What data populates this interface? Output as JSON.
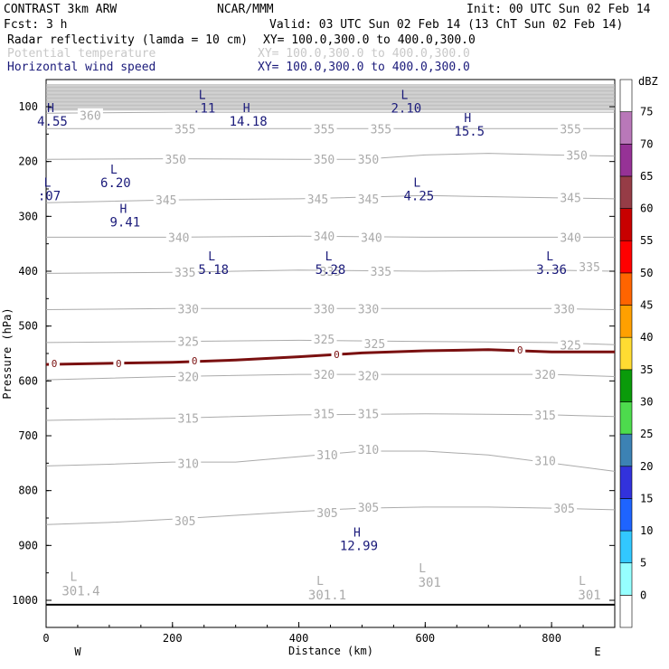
{
  "header": {
    "model": "CONTRAST  3km ARW",
    "center": "NCAR/MMM",
    "init": "Init: 00 UTC Sun 02 Feb 14",
    "fcst": "Fcst:    3 h",
    "valid": "Valid: 03 UTC Sun 02 Feb 14 (13 ChT Sun 02 Feb 14)",
    "field1_name": "Radar reflectivity (lamda = 10 cm)",
    "field1_xy": "XY= 100.0,300.0 to 400.0,300.0",
    "field2_name": "Potential temperature",
    "field2_xy": "XY= 100.0,300.0 to 400.0,300.0",
    "field3_name": "Horizontal wind speed",
    "field3_xy": "XY= 100.0,300.0 to 400.0,300.0"
  },
  "colors": {
    "field1": "#000000",
    "field2": "#c8c8c8",
    "field3": "#1a1a7a",
    "theta": "#aaaaaa",
    "freezing": "#7a1010",
    "wind_labels": "#1a1a7a"
  },
  "chart_data": {
    "type": "cross-section",
    "xlabel": "Distance (km)",
    "ylabel": "Pressure (hPa)",
    "x_ticks": [
      0,
      200,
      400,
      600,
      800
    ],
    "y_ticks": [
      100,
      200,
      300,
      400,
      500,
      600,
      700,
      800,
      900,
      1000
    ],
    "xlim": [
      0,
      900
    ],
    "ylim_hpa": [
      1050,
      55
    ],
    "west_label": "W",
    "east_label": "E",
    "colorbar": {
      "unit": "dBZ",
      "levels": [
        0,
        5,
        10,
        15,
        20,
        25,
        30,
        35,
        40,
        45,
        50,
        55,
        60,
        65,
        70,
        75
      ],
      "colors": [
        "#ffffff",
        "#96ffff",
        "#32c8ff",
        "#1e64ff",
        "#3232dc",
        "#3c82b4",
        "#4ddb4d",
        "#0a9b0a",
        "#ffdc32",
        "#ffa000",
        "#ff6400",
        "#ff0000",
        "#c80000",
        "#963c46",
        "#963296",
        "#b978b9",
        "#ffffff"
      ]
    },
    "theta_contours": [
      {
        "value": 305,
        "points": [
          [
            0,
            862
          ],
          [
            100,
            858
          ],
          [
            200,
            852
          ],
          [
            300,
            845
          ],
          [
            400,
            838
          ],
          [
            500,
            832
          ],
          [
            600,
            830
          ],
          [
            700,
            830
          ],
          [
            800,
            832
          ],
          [
            900,
            835
          ]
        ],
        "labels": [
          [
            220,
            855
          ],
          [
            445,
            840
          ],
          [
            510,
            830
          ],
          [
            820,
            832
          ]
        ]
      },
      {
        "value": 310,
        "points": [
          [
            0,
            755
          ],
          [
            100,
            752
          ],
          [
            200,
            748
          ],
          [
            300,
            748
          ],
          [
            400,
            738
          ],
          [
            500,
            728
          ],
          [
            600,
            728
          ],
          [
            700,
            735
          ],
          [
            800,
            750
          ],
          [
            900,
            765
          ]
        ],
        "labels": [
          [
            225,
            750
          ],
          [
            445,
            735
          ],
          [
            510,
            725
          ],
          [
            790,
            745
          ]
        ]
      },
      {
        "value": 315,
        "points": [
          [
            0,
            672
          ],
          [
            200,
            668
          ],
          [
            400,
            662
          ],
          [
            600,
            660
          ],
          [
            800,
            662
          ],
          [
            900,
            665
          ]
        ],
        "labels": [
          [
            225,
            668
          ],
          [
            440,
            660
          ],
          [
            510,
            660
          ],
          [
            790,
            662
          ]
        ]
      },
      {
        "value": 320,
        "points": [
          [
            0,
            598
          ],
          [
            200,
            592
          ],
          [
            400,
            588
          ],
          [
            600,
            588
          ],
          [
            800,
            588
          ],
          [
            900,
            592
          ]
        ],
        "labels": [
          [
            225,
            592
          ],
          [
            440,
            588
          ],
          [
            510,
            590
          ],
          [
            790,
            588
          ]
        ]
      },
      {
        "value": 325,
        "points": [
          [
            0,
            530
          ],
          [
            200,
            528
          ],
          [
            400,
            526
          ],
          [
            600,
            528
          ],
          [
            800,
            530
          ],
          [
            900,
            534
          ]
        ],
        "labels": [
          [
            225,
            528
          ],
          [
            440,
            524
          ],
          [
            520,
            532
          ],
          [
            830,
            534
          ]
        ]
      },
      {
        "value": 330,
        "points": [
          [
            0,
            470
          ],
          [
            200,
            468
          ],
          [
            400,
            468
          ],
          [
            600,
            468
          ],
          [
            800,
            468
          ],
          [
            900,
            470
          ]
        ],
        "labels": [
          [
            225,
            468
          ],
          [
            440,
            468
          ],
          [
            510,
            468
          ],
          [
            820,
            468
          ]
        ]
      },
      {
        "value": 335,
        "points": [
          [
            0,
            404
          ],
          [
            200,
            402
          ],
          [
            400,
            398
          ],
          [
            600,
            400
          ],
          [
            800,
            398
          ],
          [
            900,
            400
          ]
        ],
        "labels": [
          [
            220,
            402
          ],
          [
            450,
            400
          ],
          [
            530,
            400
          ],
          [
            860,
            392
          ]
        ]
      },
      {
        "value": 340,
        "points": [
          [
            0,
            338
          ],
          [
            200,
            338
          ],
          [
            400,
            336
          ],
          [
            600,
            338
          ],
          [
            800,
            338
          ],
          [
            900,
            338
          ]
        ],
        "labels": [
          [
            210,
            338
          ],
          [
            440,
            336
          ],
          [
            515,
            338
          ],
          [
            830,
            338
          ]
        ]
      },
      {
        "value": 345,
        "points": [
          [
            0,
            275
          ],
          [
            200,
            270
          ],
          [
            400,
            268
          ],
          [
            600,
            262
          ],
          [
            800,
            266
          ],
          [
            900,
            268
          ]
        ],
        "labels": [
          [
            190,
            270
          ],
          [
            430,
            268
          ],
          [
            510,
            268
          ],
          [
            830,
            266
          ]
        ]
      },
      {
        "value": 350,
        "points": [
          [
            0,
            196
          ],
          [
            200,
            195
          ],
          [
            400,
            196
          ],
          [
            500,
            196
          ],
          [
            600,
            188
          ],
          [
            700,
            185
          ],
          [
            800,
            188
          ],
          [
            900,
            190
          ]
        ],
        "labels": [
          [
            205,
            196
          ],
          [
            440,
            196
          ],
          [
            510,
            196
          ],
          [
            840,
            188
          ]
        ]
      },
      {
        "value": 355,
        "points": [
          [
            0,
            140
          ],
          [
            200,
            140
          ],
          [
            400,
            140
          ],
          [
            600,
            140
          ],
          [
            800,
            140
          ],
          [
            900,
            140
          ]
        ],
        "labels": [
          [
            220,
            140
          ],
          [
            440,
            140
          ],
          [
            530,
            140
          ],
          [
            830,
            140
          ]
        ]
      },
      {
        "value": 360,
        "points": [
          [
            0,
            112
          ],
          [
            200,
            110
          ],
          [
            400,
            110
          ],
          [
            600,
            110
          ],
          [
            800,
            110
          ],
          [
            900,
            110
          ]
        ],
        "labels": [
          [
            70,
            116
          ]
        ]
      }
    ],
    "stratosphere_band_hpa": [
      60,
      108
    ],
    "freezing_level": {
      "value": "0",
      "points": [
        [
          0,
          570
        ],
        [
          100,
          568
        ],
        [
          200,
          566
        ],
        [
          300,
          562
        ],
        [
          400,
          556
        ],
        [
          500,
          549
        ],
        [
          600,
          545
        ],
        [
          700,
          543
        ],
        [
          800,
          547
        ],
        [
          900,
          547
        ]
      ],
      "labels": [
        [
          13,
          568
        ],
        [
          115,
          568
        ],
        [
          235,
          563
        ],
        [
          460,
          552
        ],
        [
          750,
          543
        ]
      ]
    },
    "wind_extrema": [
      {
        "type": "H",
        "value": "4.55",
        "x": 10,
        "y": 110
      },
      {
        "type": "L",
        "value": ".11",
        "x": 250,
        "y": 86
      },
      {
        "type": "H",
        "value": "14.18",
        "x": 320,
        "y": 110
      },
      {
        "type": "L",
        "value": "2.10",
        "x": 570,
        "y": 86
      },
      {
        "type": "H",
        "value": "15.5",
        "x": 670,
        "y": 128
      },
      {
        "type": "L",
        "value": "6.20",
        "x": 110,
        "y": 222
      },
      {
        "type": "L",
        "value": ":07",
        "x": 5,
        "y": 246
      },
      {
        "type": "L",
        "value": "4.25",
        "x": 590,
        "y": 246
      },
      {
        "type": "H",
        "value": "9.41",
        "x": 125,
        "y": 294
      },
      {
        "type": "L",
        "value": "5.18",
        "x": 265,
        "y": 380
      },
      {
        "type": "L",
        "value": "5.28",
        "x": 450,
        "y": 380
      },
      {
        "type": "L",
        "value": "3.36",
        "x": 800,
        "y": 380
      },
      {
        "type": "H",
        "value": "12.99",
        "x": 495,
        "y": 884
      }
    ],
    "theta_extrema": [
      {
        "type": "L",
        "value": "301.4",
        "x": 55,
        "y": 978
      },
      {
        "type": "L",
        "value": "301.1",
        "x": 445,
        "y": 985
      },
      {
        "type": "L",
        "value": "301",
        "x": 607,
        "y": 962
      },
      {
        "type": "L",
        "value": "301",
        "x": 860,
        "y": 985
      }
    ],
    "surface_hpa": 1008
  }
}
